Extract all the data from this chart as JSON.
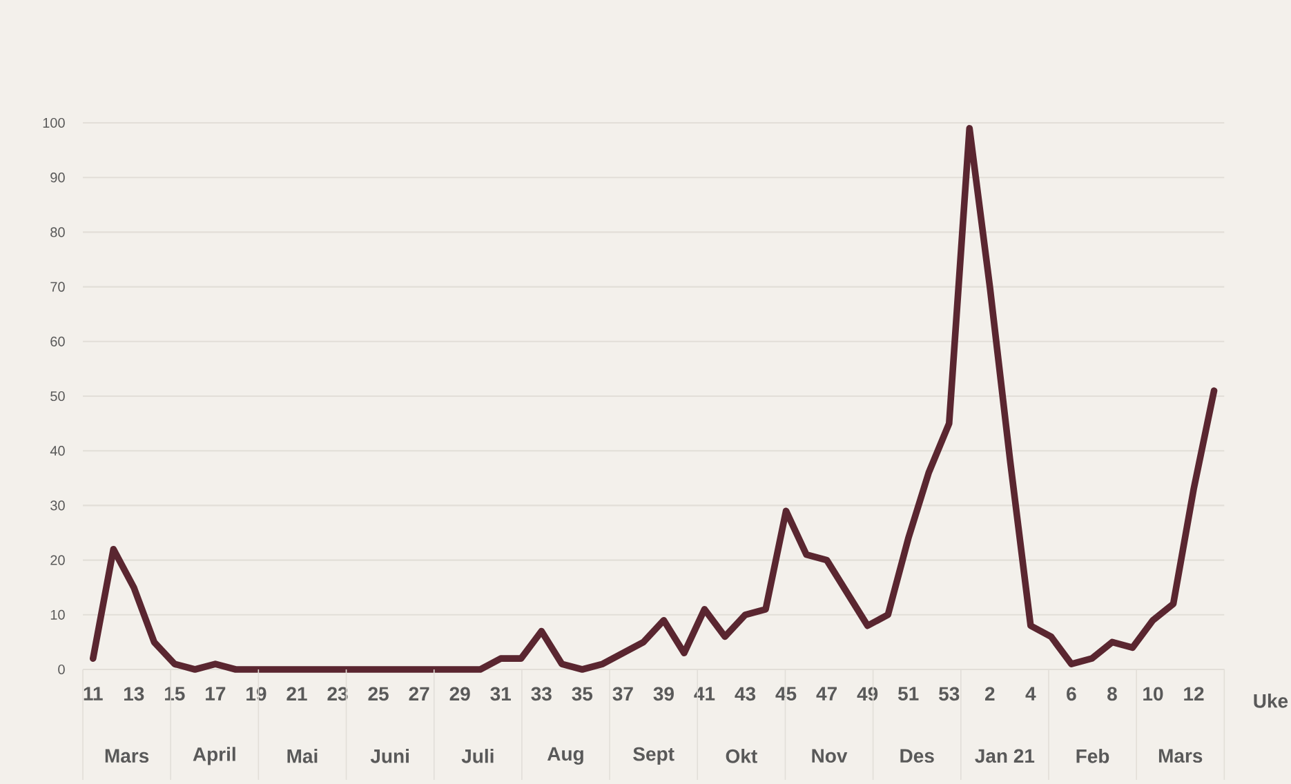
{
  "chart_data": {
    "type": "line",
    "categories": [
      "11",
      null,
      "13",
      null,
      "15",
      null,
      "17",
      null,
      "19",
      null,
      "21",
      null,
      "23",
      null,
      "25",
      null,
      "27",
      null,
      "29",
      null,
      "31",
      null,
      "33",
      null,
      "35",
      null,
      "37",
      null,
      "39",
      null,
      "41",
      null,
      "43",
      null,
      "45",
      null,
      "47",
      null,
      "49",
      null,
      "51",
      null,
      "53",
      null,
      "2",
      null,
      "4",
      null,
      "6",
      null,
      "8",
      null,
      "10",
      null,
      "12",
      null
    ],
    "values": [
      2,
      22,
      15,
      5,
      1,
      0,
      1,
      0,
      0,
      0,
      0,
      0,
      0,
      0,
      0,
      0,
      0,
      0,
      0,
      0,
      2,
      2,
      7,
      1,
      0,
      1,
      3,
      5,
      9,
      3,
      11,
      6,
      10,
      11,
      29,
      21,
      20,
      14,
      8,
      10,
      24,
      36,
      45,
      99,
      70,
      38,
      8,
      6,
      1,
      2,
      5,
      4,
      9,
      12,
      33,
      51
    ],
    "color": "#5a2630",
    "ylim": [
      0,
      100
    ],
    "yticks": [
      0,
      10,
      20,
      30,
      40,
      50,
      60,
      70,
      80,
      90,
      100
    ],
    "grid": "y",
    "xlabel": "Uke",
    "annotations": [
      "Mars",
      "April",
      "Mai",
      "Juni",
      "Juli",
      "Aug",
      "Sept",
      "Okt",
      "Nov",
      "Des",
      "Jan 21",
      "Feb",
      "Mars"
    ]
  }
}
